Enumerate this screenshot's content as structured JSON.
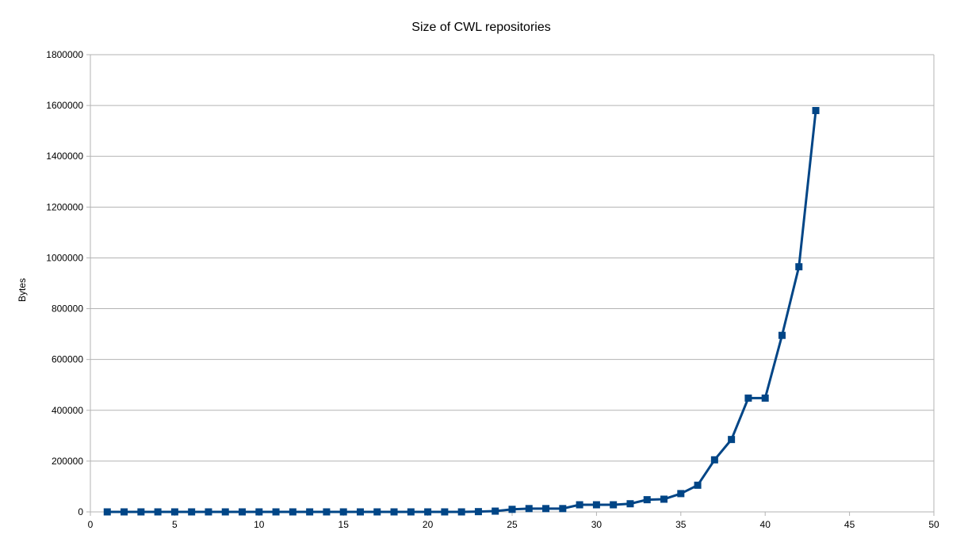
{
  "chart_data": {
    "type": "line",
    "title": "Size of CWL repositories",
    "xlabel": "",
    "ylabel": "Bytes",
    "xlim": [
      0,
      50
    ],
    "ylim": [
      0,
      1800000
    ],
    "xticks": [
      0,
      5,
      10,
      15,
      20,
      25,
      30,
      35,
      40,
      45,
      50
    ],
    "yticks": [
      0,
      200000,
      400000,
      600000,
      800000,
      1000000,
      1200000,
      1400000,
      1600000,
      1800000
    ],
    "grid": "horizontal-top-frame",
    "legend": "none",
    "series": [
      {
        "color": "#004586",
        "marker": "square",
        "x": [
          1,
          2,
          3,
          4,
          5,
          6,
          7,
          8,
          9,
          10,
          11,
          12,
          13,
          14,
          15,
          16,
          17,
          18,
          19,
          20,
          21,
          22,
          23,
          24,
          25,
          26,
          27,
          28,
          29,
          30,
          31,
          32,
          33,
          34,
          35,
          36,
          37,
          38,
          39,
          40,
          41,
          42,
          43
        ],
        "y": [
          0,
          0,
          0,
          0,
          0,
          0,
          0,
          0,
          0,
          0,
          0,
          0,
          0,
          0,
          0,
          0,
          0,
          0,
          0,
          0,
          0,
          0,
          1000,
          3000,
          10000,
          13000,
          13000,
          13000,
          28000,
          28000,
          28000,
          32000,
          48000,
          50000,
          72000,
          105000,
          205000,
          285000,
          448000,
          448000,
          695000,
          965000,
          1580000
        ]
      }
    ]
  }
}
